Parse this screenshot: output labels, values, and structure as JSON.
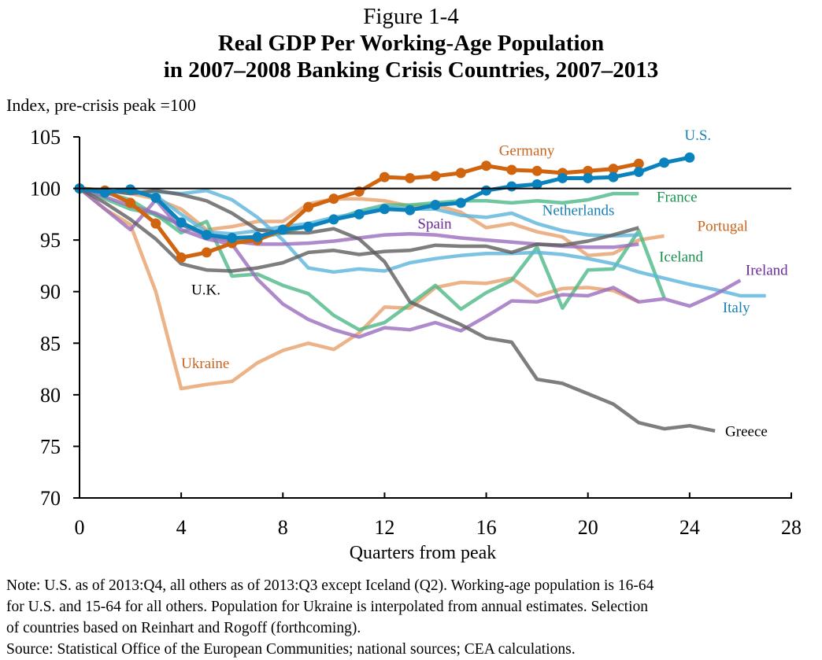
{
  "figure_number": "Figure 1-4",
  "title_line1": "Real GDP Per Working-Age Population",
  "title_line2": "in 2007–2008 Banking Crisis Countries, 2007–2013",
  "notes": [
    "Note: U.S. as of 2013:Q4, all others as of 2013:Q3 except Iceland (Q2). Working-age population is 16-64",
    "for U.S. and 15-64 for all others. Population for Ukraine is interpolated from annual estimates. Selection",
    "of countries based on Reinhart and Rogoff (forthcoming).",
    "Source: Statistical Office of the European Communities; national sources; CEA calculations."
  ],
  "chart_data": {
    "type": "line",
    "title": "Real GDP Per Working-Age Population in 2007–2008 Banking Crisis Countries, 2007–2013",
    "xlabel": "Quarters from peak",
    "ylabel": "Index, pre-crisis peak =100",
    "xlim": [
      0,
      28
    ],
    "ylim": [
      70,
      105
    ],
    "x_ticks": [
      0,
      4,
      8,
      12,
      16,
      20,
      24,
      28
    ],
    "y_ticks": [
      70,
      75,
      80,
      85,
      90,
      95,
      100,
      105
    ],
    "reference_line": 100,
    "grid": false,
    "legend": "inline labels",
    "series": [
      {
        "name": "Ukraine",
        "color": "#e8a06a",
        "label_color": "#c8641e",
        "markers": false,
        "values": [
          100,
          98.0,
          96.5,
          90.0,
          80.6,
          81.0,
          81.3,
          83.1,
          84.3,
          85.0,
          84.4,
          86.0,
          88.5,
          88.4,
          90.4,
          90.9,
          90.8,
          91.3,
          89.6,
          90.3,
          90.4,
          90.1,
          89.0
        ]
      },
      {
        "name": "Portugal",
        "color": "#e8a06a",
        "label_color": "#c8641e",
        "markers": false,
        "values": [
          100,
          99.8,
          99.5,
          99.0,
          98.0,
          96.0,
          96.3,
          96.8,
          96.8,
          98.5,
          99.0,
          99.0,
          98.8,
          98.3,
          98.4,
          97.7,
          96.2,
          96.6,
          95.8,
          95.3,
          93.5,
          93.7,
          95.0,
          95.4
        ]
      },
      {
        "name": "Iceland",
        "color": "#4cb886",
        "label_color": "#1a9150",
        "markers": false,
        "values": [
          100,
          99.0,
          98.0,
          97.5,
          95.7,
          96.8,
          91.5,
          91.7,
          90.6,
          89.8,
          87.7,
          86.3,
          87.0,
          88.8,
          90.6,
          88.3,
          89.9,
          91.1,
          94.3,
          88.4,
          92.1,
          92.2,
          95.9,
          89.4
        ]
      },
      {
        "name": "France",
        "color": "#4cb886",
        "label_color": "#1a9150",
        "markers": false,
        "values": [
          100,
          99.6,
          98.9,
          97.4,
          96.5,
          95.5,
          95.0,
          95.2,
          95.7,
          96.4,
          97.0,
          97.8,
          98.4,
          98.4,
          98.6,
          98.8,
          98.8,
          98.6,
          98.8,
          98.6,
          98.9,
          99.5,
          99.5
        ]
      },
      {
        "name": "Netherlands",
        "color": "#5bb4dc",
        "label_color": "#1a80b4",
        "markers": false,
        "values": [
          100,
          99.8,
          99.6,
          99.3,
          97.5,
          95.8,
          95.6,
          95.9,
          96.3,
          96.6,
          97.2,
          97.6,
          98.2,
          98.0,
          98.0,
          97.4,
          97.2,
          97.6,
          96.6,
          95.9,
          95.5,
          95.4,
          95.5
        ]
      },
      {
        "name": "Italy",
        "color": "#5bb4dc",
        "label_color": "#1a80b4",
        "markers": false,
        "values": [
          100,
          99.8,
          99.6,
          99.7,
          99.5,
          99.8,
          98.9,
          97.2,
          95.0,
          92.3,
          91.9,
          92.2,
          92.0,
          92.8,
          93.2,
          93.5,
          93.7,
          93.7,
          93.8,
          93.6,
          93.2,
          92.7,
          91.9,
          91.3,
          90.7,
          90.2,
          89.6,
          89.6
        ]
      },
      {
        "name": "Spain",
        "color": "#9a6dbd",
        "label_color": "#6a2a9a",
        "markers": false,
        "values": [
          100,
          99.2,
          98.3,
          97.6,
          96.5,
          95.4,
          94.9,
          94.6,
          94.6,
          94.7,
          94.9,
          95.2,
          95.5,
          95.6,
          95.5,
          95.2,
          95.0,
          94.8,
          94.6,
          94.4,
          94.3,
          94.3,
          94.6
        ]
      },
      {
        "name": "Ireland",
        "color": "#9a6dbd",
        "label_color": "#6a2a9a",
        "markers": false,
        "values": [
          100,
          98.0,
          96.0,
          98.9,
          96.0,
          95.1,
          94.6,
          91.2,
          88.8,
          87.3,
          86.3,
          85.6,
          86.5,
          86.3,
          87.0,
          86.2,
          87.6,
          89.1,
          89.0,
          89.7,
          89.6,
          90.4,
          89.0,
          89.3,
          88.6,
          89.7,
          91.1
        ]
      },
      {
        "name": "U.K.",
        "color": "#5e5e5e",
        "label_color": "#000000",
        "markers": false,
        "values": [
          100,
          98.6,
          97.0,
          95.1,
          92.7,
          92.1,
          92.0,
          92.3,
          92.8,
          93.8,
          94.0,
          93.6,
          93.9,
          94.0,
          94.5,
          94.4,
          94.4,
          93.8,
          94.6,
          94.5,
          94.9,
          95.5,
          96.2
        ]
      },
      {
        "name": "Greece",
        "color": "#5e5e5e",
        "label_color": "#000000",
        "markers": false,
        "values": [
          100,
          99.8,
          99.5,
          99.8,
          99.4,
          98.8,
          97.6,
          96.0,
          95.7,
          95.7,
          96.1,
          95.1,
          92.9,
          89.0,
          87.9,
          86.8,
          85.5,
          85.1,
          81.5,
          81.1,
          80.1,
          79.1,
          77.3,
          76.7,
          77.0,
          76.5
        ]
      },
      {
        "name": "Germany",
        "color": "#d0640f",
        "label_color": "#c8641e",
        "markers": true,
        "values": [
          100,
          99.8,
          98.6,
          96.6,
          93.3,
          93.8,
          94.7,
          95.0,
          96.0,
          98.2,
          99.0,
          99.7,
          101.1,
          101.0,
          101.2,
          101.5,
          102.2,
          101.8,
          101.7,
          101.5,
          101.7,
          101.9,
          102.4
        ]
      },
      {
        "name": "U.S.",
        "color": "#0a82bd",
        "label_color": "#1a80b4",
        "markers": true,
        "values": [
          100,
          99.6,
          99.9,
          99.1,
          96.7,
          95.5,
          95.2,
          95.3,
          96.0,
          96.3,
          97.0,
          97.5,
          98.0,
          97.9,
          98.4,
          98.6,
          99.8,
          100.2,
          100.4,
          101.0,
          101.0,
          101.1,
          101.6,
          102.5,
          103.0
        ]
      }
    ],
    "annotations": [
      {
        "text": "Germany",
        "series": "Germany",
        "x": 16.5,
        "y": 103.2
      },
      {
        "text": "U.S.",
        "series": "U.S.",
        "x": 23.8,
        "y": 104.7
      },
      {
        "text": "France",
        "series": "France",
        "x": 22.7,
        "y": 98.7
      },
      {
        "text": "Netherlands",
        "series": "Netherlands",
        "x": 18.2,
        "y": 97.4
      },
      {
        "text": "Portugal",
        "series": "Portugal",
        "x": 24.3,
        "y": 95.9
      },
      {
        "text": "Spain",
        "series": "Spain",
        "x": 13.3,
        "y": 96.1
      },
      {
        "text": "Iceland",
        "series": "Iceland",
        "x": 22.8,
        "y": 92.9
      },
      {
        "text": "Ireland",
        "series": "Ireland",
        "x": 26.2,
        "y": 91.6
      },
      {
        "text": "Italy",
        "series": "Italy",
        "x": 25.3,
        "y": 88.0
      },
      {
        "text": "U.K.",
        "series": "U.K.",
        "x": 4.4,
        "y": 89.7
      },
      {
        "text": "Ukraine",
        "series": "Ukraine",
        "x": 4.0,
        "y": 82.6
      },
      {
        "text": "Greece",
        "series": "Greece",
        "x": 25.4,
        "y": 76.0
      }
    ]
  }
}
